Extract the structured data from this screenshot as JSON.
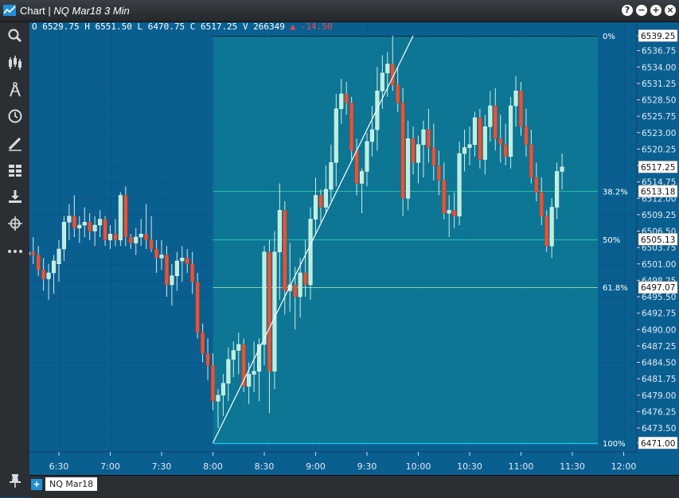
{
  "window": {
    "title": "Chart",
    "subtitle": "NQ Mar18 3 Min"
  },
  "window_buttons": [
    "?",
    "−",
    "+",
    "×"
  ],
  "toolbar": [
    "search-icon",
    "candlestick-icon",
    "drawing-compass-icon",
    "clock-icon",
    "pencil-icon",
    "grid-layout-icon",
    "download-icon",
    "crosshair-icon",
    "more-icon"
  ],
  "ohlc": {
    "open": "O 6529.75",
    "high": "H 6551.50",
    "low": "L 6470.75",
    "close": "C 6517.25",
    "volume": "V 266349",
    "change": "▲ -14.50"
  },
  "tab": {
    "label": "NQ Mar18"
  },
  "colors": {
    "background": "#0a5f91",
    "up_candle": "#bdeedd",
    "down_candle": "#e4553a",
    "fib_zone": "#0e8396"
  },
  "chart_data": {
    "type": "candlestick",
    "y_axis": {
      "range": [
        6469.5,
        6541.5
      ],
      "ticks": [
        "6539.25",
        "6536.75",
        "6534.00",
        "6531.25",
        "6528.50",
        "6525.75",
        "6523.00",
        "6520.25",
        "6517.50",
        "6514.75",
        "6512.00",
        "6509.25",
        "6506.50",
        "6503.75",
        "6501.00",
        "6498.25",
        "6495.50",
        "6492.75",
        "6490.00",
        "6487.25",
        "6484.50",
        "6481.75",
        "6479.00",
        "6476.25",
        "6473.50",
        "6471.00"
      ],
      "label_values": [
        6539.25,
        6536.75,
        6534.0,
        6531.25,
        6528.5,
        6525.75,
        6523.0,
        6520.25,
        6517.5,
        6514.75,
        6512.0,
        6509.25,
        6506.5,
        6503.75,
        6501.0,
        6498.25,
        6495.5,
        6492.75,
        6490.0,
        6487.25,
        6484.5,
        6481.75,
        6479.0,
        6476.25,
        6473.5,
        6471.0
      ]
    },
    "x_axis": {
      "ticks": [
        "6:30",
        "7:00",
        "7:30",
        "8:00",
        "8:30",
        "9:00",
        "9:30",
        "10:00",
        "10:30",
        "11:00",
        "11:30",
        "12:00"
      ],
      "tick_minutes": [
        390,
        420,
        450,
        480,
        510,
        540,
        570,
        600,
        630,
        660,
        690,
        720
      ]
    },
    "price_labels": [
      {
        "text": "6539.25",
        "value": 6539.25,
        "style": "white"
      },
      {
        "text": "6517.25",
        "value": 6517.25,
        "style": "white"
      },
      {
        "text": "6513.18",
        "value": 6513.18,
        "style": "white"
      },
      {
        "text": "6505.13",
        "value": 6505.13,
        "style": "white"
      },
      {
        "text": "6497.07",
        "value": 6497.07,
        "style": "white"
      },
      {
        "text": "6471.00",
        "value": 6471.0,
        "style": "white"
      }
    ],
    "fibonacci": {
      "start": {
        "time_min": 480,
        "price": 6471.0
      },
      "end": {
        "time_min": 597,
        "price": 6539.25
      },
      "levels": [
        {
          "label": "0%",
          "price": 6539.25
        },
        {
          "label": "38.2%",
          "price": 6513.18
        },
        {
          "label": "50%",
          "price": 6505.13
        },
        {
          "label": "61.8%",
          "price": 6497.07
        },
        {
          "label": "100%",
          "price": 6471.0
        }
      ]
    },
    "candles": [
      {
        "t": 363,
        "o": 6497.5,
        "h": 6500.5,
        "l": 6495.0,
        "c": 6496.0
      },
      {
        "t": 366,
        "o": 6496.0,
        "h": 6502.0,
        "l": 6494.5,
        "c": 6501.5
      },
      {
        "t": 369,
        "o": 6501.0,
        "h": 6504.5,
        "l": 6497.0,
        "c": 6502.5
      },
      {
        "t": 372,
        "o": 6502.5,
        "h": 6505.0,
        "l": 6500.0,
        "c": 6503.0
      },
      {
        "t": 375,
        "o": 6503.0,
        "h": 6505.5,
        "l": 6501.0,
        "c": 6502.5
      },
      {
        "t": 378,
        "o": 6502.5,
        "h": 6504.0,
        "l": 6499.0,
        "c": 6500.0
      },
      {
        "t": 381,
        "o": 6500.0,
        "h": 6502.0,
        "l": 6496.5,
        "c": 6498.5
      },
      {
        "t": 384,
        "o": 6498.5,
        "h": 6501.0,
        "l": 6495.0,
        "c": 6499.5
      },
      {
        "t": 387,
        "o": 6499.5,
        "h": 6502.5,
        "l": 6496.0,
        "c": 6501.5
      },
      {
        "t": 390,
        "o": 6501.0,
        "h": 6505.0,
        "l": 6498.0,
        "c": 6503.5
      },
      {
        "t": 393,
        "o": 6503.5,
        "h": 6509.0,
        "l": 6501.5,
        "c": 6508.0
      },
      {
        "t": 396,
        "o": 6508.0,
        "h": 6511.0,
        "l": 6505.0,
        "c": 6509.0
      },
      {
        "t": 399,
        "o": 6509.0,
        "h": 6512.5,
        "l": 6505.5,
        "c": 6507.0
      },
      {
        "t": 402,
        "o": 6507.0,
        "h": 6509.0,
        "l": 6504.5,
        "c": 6507.5
      },
      {
        "t": 405,
        "o": 6507.5,
        "h": 6510.5,
        "l": 6505.5,
        "c": 6508.0
      },
      {
        "t": 408,
        "o": 6508.0,
        "h": 6509.5,
        "l": 6505.0,
        "c": 6506.5
      },
      {
        "t": 411,
        "o": 6506.5,
        "h": 6509.0,
        "l": 6504.0,
        "c": 6507.5
      },
      {
        "t": 414,
        "o": 6507.5,
        "h": 6510.0,
        "l": 6505.5,
        "c": 6508.5
      },
      {
        "t": 417,
        "o": 6508.5,
        "h": 6509.0,
        "l": 6504.0,
        "c": 6505.0
      },
      {
        "t": 420,
        "o": 6505.0,
        "h": 6507.5,
        "l": 6503.5,
        "c": 6506.0
      },
      {
        "t": 423,
        "o": 6506.0,
        "h": 6508.5,
        "l": 6504.0,
        "c": 6505.0
      },
      {
        "t": 426,
        "o": 6505.0,
        "h": 6513.0,
        "l": 6504.0,
        "c": 6512.5
      },
      {
        "t": 429,
        "o": 6512.5,
        "h": 6514.0,
        "l": 6504.0,
        "c": 6505.5
      },
      {
        "t": 432,
        "o": 6505.5,
        "h": 6506.0,
        "l": 6503.5,
        "c": 6504.5
      },
      {
        "t": 435,
        "o": 6504.5,
        "h": 6507.0,
        "l": 6502.5,
        "c": 6505.5
      },
      {
        "t": 438,
        "o": 6505.5,
        "h": 6508.5,
        "l": 6504.0,
        "c": 6506.0
      },
      {
        "t": 441,
        "o": 6506.0,
        "h": 6511.0,
        "l": 6503.5,
        "c": 6505.0
      },
      {
        "t": 444,
        "o": 6505.0,
        "h": 6509.0,
        "l": 6503.0,
        "c": 6503.5
      },
      {
        "t": 447,
        "o": 6503.5,
        "h": 6505.0,
        "l": 6499.5,
        "c": 6502.0
      },
      {
        "t": 450,
        "o": 6502.0,
        "h": 6505.0,
        "l": 6500.0,
        "c": 6502.5
      },
      {
        "t": 453,
        "o": 6502.5,
        "h": 6504.0,
        "l": 6495.5,
        "c": 6497.5
      },
      {
        "t": 456,
        "o": 6497.5,
        "h": 6501.0,
        "l": 6494.0,
        "c": 6499.0
      },
      {
        "t": 459,
        "o": 6499.0,
        "h": 6503.0,
        "l": 6496.5,
        "c": 6501.5
      },
      {
        "t": 462,
        "o": 6501.5,
        "h": 6504.0,
        "l": 6498.0,
        "c": 6502.0
      },
      {
        "t": 465,
        "o": 6502.0,
        "h": 6503.5,
        "l": 6499.5,
        "c": 6501.0
      },
      {
        "t": 468,
        "o": 6501.0,
        "h": 6503.0,
        "l": 6496.0,
        "c": 6498.0
      },
      {
        "t": 471,
        "o": 6498.0,
        "h": 6499.5,
        "l": 6488.5,
        "c": 6489.5
      },
      {
        "t": 474,
        "o": 6489.5,
        "h": 6491.0,
        "l": 6484.5,
        "c": 6486.0
      },
      {
        "t": 477,
        "o": 6486.0,
        "h": 6488.5,
        "l": 6481.5,
        "c": 6484.0
      },
      {
        "t": 480,
        "o": 6484.0,
        "h": 6486.0,
        "l": 6476.5,
        "c": 6478.0
      },
      {
        "t": 483,
        "o": 6478.0,
        "h": 6480.0,
        "l": 6473.5,
        "c": 6479.0
      },
      {
        "t": 486,
        "o": 6479.0,
        "h": 6482.5,
        "l": 6475.5,
        "c": 6481.0
      },
      {
        "t": 489,
        "o": 6481.0,
        "h": 6487.0,
        "l": 6478.0,
        "c": 6485.0
      },
      {
        "t": 492,
        "o": 6485.0,
        "h": 6488.0,
        "l": 6482.0,
        "c": 6486.5
      },
      {
        "t": 495,
        "o": 6486.5,
        "h": 6489.5,
        "l": 6482.5,
        "c": 6487.5
      },
      {
        "t": 498,
        "o": 6487.5,
        "h": 6488.5,
        "l": 6479.5,
        "c": 6480.5
      },
      {
        "t": 501,
        "o": 6480.5,
        "h": 6484.5,
        "l": 6477.5,
        "c": 6482.5
      },
      {
        "t": 504,
        "o": 6482.5,
        "h": 6488.0,
        "l": 6479.5,
        "c": 6483.0
      },
      {
        "t": 507,
        "o": 6483.0,
        "h": 6488.5,
        "l": 6478.0,
        "c": 6487.5
      },
      {
        "t": 510,
        "o": 6487.5,
        "h": 6504.0,
        "l": 6484.0,
        "c": 6503.0
      },
      {
        "t": 513,
        "o": 6503.0,
        "h": 6505.0,
        "l": 6476.0,
        "c": 6483.0
      },
      {
        "t": 516,
        "o": 6483.0,
        "h": 6506.5,
        "l": 6480.0,
        "c": 6503.0
      },
      {
        "t": 519,
        "o": 6503.0,
        "h": 6514.5,
        "l": 6495.0,
        "c": 6510.0
      },
      {
        "t": 522,
        "o": 6510.0,
        "h": 6511.5,
        "l": 6492.5,
        "c": 6496.5
      },
      {
        "t": 525,
        "o": 6496.5,
        "h": 6504.5,
        "l": 6493.0,
        "c": 6497.5
      },
      {
        "t": 528,
        "o": 6497.5,
        "h": 6500.5,
        "l": 6490.0,
        "c": 6495.5
      },
      {
        "t": 531,
        "o": 6495.5,
        "h": 6502.0,
        "l": 6492.0,
        "c": 6499.5
      },
      {
        "t": 534,
        "o": 6499.5,
        "h": 6505.0,
        "l": 6495.5,
        "c": 6497.5
      },
      {
        "t": 537,
        "o": 6497.5,
        "h": 6510.5,
        "l": 6495.0,
        "c": 6508.5
      },
      {
        "t": 540,
        "o": 6508.5,
        "h": 6515.5,
        "l": 6506.0,
        "c": 6512.5
      },
      {
        "t": 543,
        "o": 6512.5,
        "h": 6513.5,
        "l": 6508.0,
        "c": 6510.5
      },
      {
        "t": 546,
        "o": 6510.5,
        "h": 6517.5,
        "l": 6509.5,
        "c": 6513.5
      },
      {
        "t": 549,
        "o": 6513.5,
        "h": 6521.0,
        "l": 6511.5,
        "c": 6518.0
      },
      {
        "t": 552,
        "o": 6518.0,
        "h": 6529.5,
        "l": 6514.0,
        "c": 6527.0
      },
      {
        "t": 555,
        "o": 6527.0,
        "h": 6532.0,
        "l": 6524.5,
        "c": 6529.5
      },
      {
        "t": 558,
        "o": 6529.5,
        "h": 6531.5,
        "l": 6526.0,
        "c": 6528.0
      },
      {
        "t": 561,
        "o": 6528.0,
        "h": 6529.0,
        "l": 6518.5,
        "c": 6520.0
      },
      {
        "t": 564,
        "o": 6520.0,
        "h": 6522.0,
        "l": 6512.5,
        "c": 6514.5
      },
      {
        "t": 567,
        "o": 6514.5,
        "h": 6517.0,
        "l": 6509.5,
        "c": 6516.5
      },
      {
        "t": 570,
        "o": 6516.5,
        "h": 6523.0,
        "l": 6514.0,
        "c": 6521.5
      },
      {
        "t": 573,
        "o": 6521.5,
        "h": 6527.5,
        "l": 6519.0,
        "c": 6523.5
      },
      {
        "t": 576,
        "o": 6523.5,
        "h": 6534.0,
        "l": 6520.0,
        "c": 6530.0
      },
      {
        "t": 579,
        "o": 6530.0,
        "h": 6536.0,
        "l": 6527.0,
        "c": 6533.0
      },
      {
        "t": 582,
        "o": 6533.0,
        "h": 6536.5,
        "l": 6529.0,
        "c": 6534.5
      },
      {
        "t": 585,
        "o": 6534.5,
        "h": 6539.25,
        "l": 6530.0,
        "c": 6531.0
      },
      {
        "t": 588,
        "o": 6531.0,
        "h": 6534.0,
        "l": 6526.5,
        "c": 6528.0
      },
      {
        "t": 591,
        "o": 6528.0,
        "h": 6530.5,
        "l": 6509.0,
        "c": 6512.0
      },
      {
        "t": 594,
        "o": 6512.0,
        "h": 6525.0,
        "l": 6510.0,
        "c": 6522.0
      },
      {
        "t": 597,
        "o": 6522.0,
        "h": 6524.0,
        "l": 6516.0,
        "c": 6518.0
      },
      {
        "t": 600,
        "o": 6518.0,
        "h": 6522.5,
        "l": 6514.5,
        "c": 6521.0
      },
      {
        "t": 603,
        "o": 6521.0,
        "h": 6525.0,
        "l": 6515.5,
        "c": 6523.5
      },
      {
        "t": 606,
        "o": 6523.5,
        "h": 6527.0,
        "l": 6518.0,
        "c": 6520.5
      },
      {
        "t": 609,
        "o": 6520.5,
        "h": 6524.5,
        "l": 6515.0,
        "c": 6517.5
      },
      {
        "t": 612,
        "o": 6517.5,
        "h": 6520.0,
        "l": 6512.5,
        "c": 6515.0
      },
      {
        "t": 615,
        "o": 6515.0,
        "h": 6518.0,
        "l": 6508.5,
        "c": 6509.5
      },
      {
        "t": 618,
        "o": 6509.5,
        "h": 6512.5,
        "l": 6505.5,
        "c": 6510.0
      },
      {
        "t": 621,
        "o": 6510.0,
        "h": 6513.0,
        "l": 6507.0,
        "c": 6509.0
      },
      {
        "t": 624,
        "o": 6509.0,
        "h": 6521.5,
        "l": 6507.5,
        "c": 6519.5
      },
      {
        "t": 627,
        "o": 6519.5,
        "h": 6523.5,
        "l": 6516.5,
        "c": 6520.5
      },
      {
        "t": 630,
        "o": 6520.5,
        "h": 6524.0,
        "l": 6517.5,
        "c": 6521.0
      },
      {
        "t": 633,
        "o": 6521.0,
        "h": 6526.5,
        "l": 6519.0,
        "c": 6525.5
      },
      {
        "t": 636,
        "o": 6525.5,
        "h": 6527.0,
        "l": 6517.0,
        "c": 6518.5
      },
      {
        "t": 639,
        "o": 6518.5,
        "h": 6526.0,
        "l": 6516.0,
        "c": 6524.0
      },
      {
        "t": 642,
        "o": 6524.0,
        "h": 6530.0,
        "l": 6521.5,
        "c": 6527.5
      },
      {
        "t": 645,
        "o": 6527.5,
        "h": 6530.5,
        "l": 6520.0,
        "c": 6522.0
      },
      {
        "t": 648,
        "o": 6522.0,
        "h": 6526.0,
        "l": 6518.0,
        "c": 6521.0
      },
      {
        "t": 651,
        "o": 6521.0,
        "h": 6524.5,
        "l": 6517.5,
        "c": 6519.0
      },
      {
        "t": 654,
        "o": 6519.0,
        "h": 6529.0,
        "l": 6517.0,
        "c": 6527.5
      },
      {
        "t": 657,
        "o": 6527.5,
        "h": 6532.5,
        "l": 6524.0,
        "c": 6530.0
      },
      {
        "t": 660,
        "o": 6530.0,
        "h": 6531.5,
        "l": 6522.5,
        "c": 6524.0
      },
      {
        "t": 663,
        "o": 6524.0,
        "h": 6527.0,
        "l": 6519.0,
        "c": 6521.0
      },
      {
        "t": 666,
        "o": 6521.0,
        "h": 6523.5,
        "l": 6514.5,
        "c": 6515.5
      },
      {
        "t": 669,
        "o": 6515.5,
        "h": 6518.0,
        "l": 6511.5,
        "c": 6513.0
      },
      {
        "t": 672,
        "o": 6513.0,
        "h": 6515.5,
        "l": 6507.5,
        "c": 6509.0
      },
      {
        "t": 675,
        "o": 6509.0,
        "h": 6510.0,
        "l": 6503.0,
        "c": 6504.0
      },
      {
        "t": 678,
        "o": 6504.0,
        "h": 6512.0,
        "l": 6502.0,
        "c": 6510.5
      },
      {
        "t": 681,
        "o": 6510.5,
        "h": 6518.0,
        "l": 6508.5,
        "c": 6516.5
      },
      {
        "t": 684,
        "o": 6516.5,
        "h": 6519.5,
        "l": 6513.5,
        "c": 6517.25
      }
    ]
  }
}
